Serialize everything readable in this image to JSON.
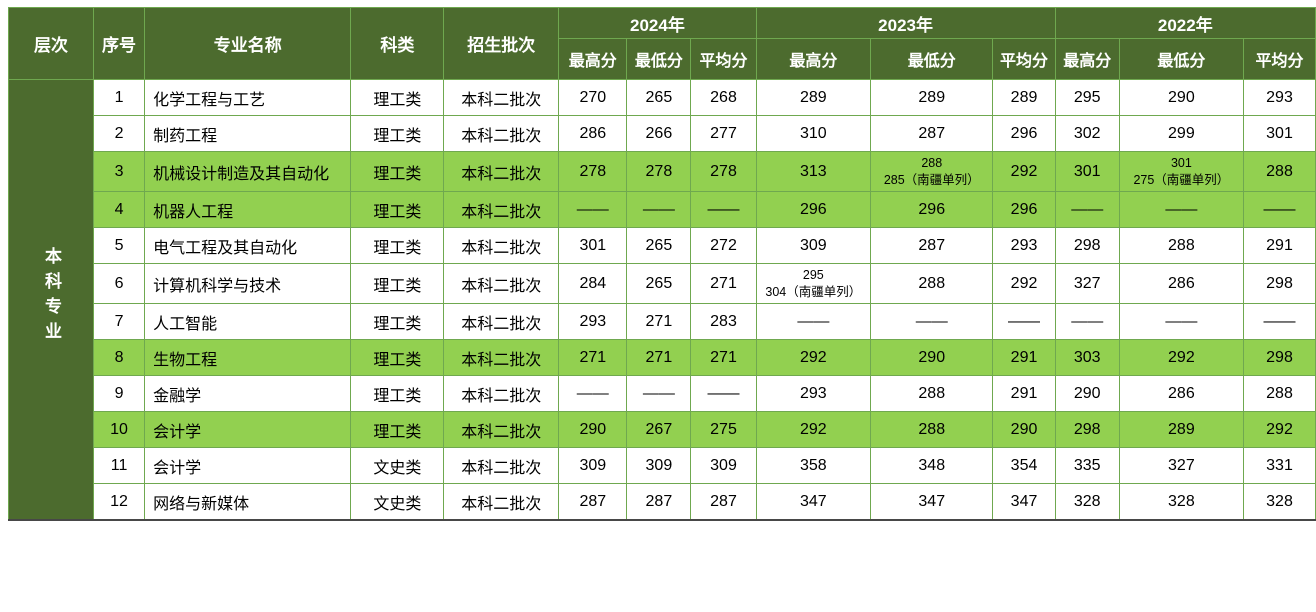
{
  "table": {
    "header": {
      "level": "层次",
      "no": "序号",
      "major": "专业名称",
      "category": "科类",
      "batch": "招生批次",
      "year_groups": [
        {
          "year": "2024年",
          "cols": [
            "最高分",
            "最低分",
            "平均分"
          ]
        },
        {
          "year": "2023年",
          "cols": [
            "最高分",
            "最低分",
            "平均分"
          ]
        },
        {
          "year": "2022年",
          "cols": [
            "最高分",
            "最低分",
            "平均分"
          ]
        }
      ]
    },
    "level_label": "本科专业",
    "rows": [
      {
        "no": "1",
        "major": "化学工程与工艺",
        "category": "理工类",
        "batch": "本科二批次",
        "highlight": false,
        "scores": [
          "270",
          "265",
          "268",
          "289",
          "289",
          "289",
          "295",
          "290",
          "293"
        ]
      },
      {
        "no": "2",
        "major": "制药工程",
        "category": "理工类",
        "batch": "本科二批次",
        "highlight": false,
        "scores": [
          "286",
          "266",
          "277",
          "310",
          "287",
          "296",
          "302",
          "299",
          "301"
        ]
      },
      {
        "no": "3",
        "major": "机械设计制造及其自动化",
        "category": "理工类",
        "batch": "本科二批次",
        "highlight": true,
        "scores": [
          "278",
          "278",
          "278",
          "313",
          "288\n285（南疆单列）",
          "292",
          "301",
          "301\n275（南疆单列）",
          "288"
        ]
      },
      {
        "no": "4",
        "major": "机器人工程",
        "category": "理工类",
        "batch": "本科二批次",
        "highlight": true,
        "scores": [
          "——",
          "——",
          "——",
          "296",
          "296",
          "296",
          "——",
          "——",
          "——"
        ]
      },
      {
        "no": "5",
        "major": "电气工程及其自动化",
        "category": "理工类",
        "batch": "本科二批次",
        "highlight": false,
        "scores": [
          "301",
          "265",
          "272",
          "309",
          "287",
          "293",
          "298",
          "288",
          "291"
        ]
      },
      {
        "no": "6",
        "major": "计算机科学与技术",
        "category": "理工类",
        "batch": "本科二批次",
        "highlight": false,
        "scores": [
          "284",
          "265",
          "271",
          "295\n304（南疆单列）",
          "288",
          "292",
          "327",
          "286",
          "298"
        ]
      },
      {
        "no": "7",
        "major": "人工智能",
        "category": "理工类",
        "batch": "本科二批次",
        "highlight": false,
        "scores": [
          "293",
          "271",
          "283",
          "——",
          "——",
          "——",
          "——",
          "——",
          "——"
        ]
      },
      {
        "no": "8",
        "major": "生物工程",
        "category": "理工类",
        "batch": "本科二批次",
        "highlight": true,
        "scores": [
          "271",
          "271",
          "271",
          "292",
          "290",
          "291",
          "303",
          "292",
          "298"
        ]
      },
      {
        "no": "9",
        "major": "金融学",
        "category": "理工类",
        "batch": "本科二批次",
        "highlight": false,
        "scores": [
          "——",
          "——",
          "——",
          "293",
          "288",
          "291",
          "290",
          "286",
          "288"
        ]
      },
      {
        "no": "10",
        "major": "会计学",
        "category": "理工类",
        "batch": "本科二批次",
        "highlight": true,
        "scores": [
          "290",
          "267",
          "275",
          "292",
          "288",
          "290",
          "298",
          "289",
          "292"
        ]
      },
      {
        "no": "11",
        "major": "会计学",
        "category": "文史类",
        "batch": "本科二批次",
        "highlight": false,
        "scores": [
          "309",
          "309",
          "309",
          "358",
          "348",
          "354",
          "335",
          "327",
          "331"
        ]
      },
      {
        "no": "12",
        "major": "网络与新媒体",
        "category": "文史类",
        "batch": "本科二批次",
        "highlight": false,
        "scores": [
          "287",
          "287",
          "287",
          "347",
          "347",
          "347",
          "328",
          "328",
          "328"
        ]
      }
    ]
  },
  "colors": {
    "header_bg": "#4C6B2E",
    "row_highlight": "#92D050",
    "grid": "#6FA84F",
    "header_text": "#FFFFFF",
    "body_text": "#000000"
  }
}
